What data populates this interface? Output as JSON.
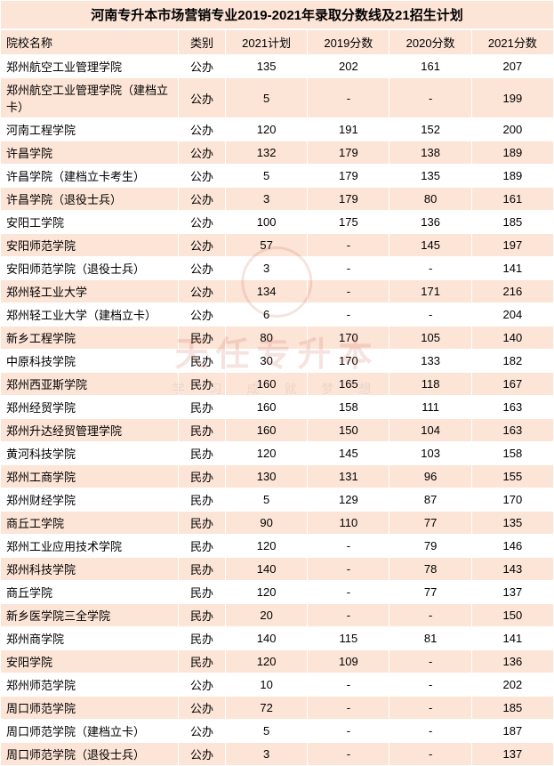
{
  "title": "河南专升本市场营销专业2019-2021年录取分数线及21招生计划",
  "columns": [
    "院校名称",
    "类别",
    "2021计划",
    "2019分数",
    "2020分数",
    "2021分数"
  ],
  "column_widths": [
    "200px",
    "60px",
    "85px",
    "85px",
    "85px",
    "85px"
  ],
  "rows": [
    [
      "郑州航空工业管理学院",
      "公办",
      "135",
      "202",
      "161",
      "207"
    ],
    [
      "郑州航空工业管理学院（建档立卡）",
      "公办",
      "5",
      "-",
      "-",
      "199"
    ],
    [
      "河南工程学院",
      "公办",
      "120",
      "191",
      "152",
      "200"
    ],
    [
      "许昌学院",
      "公办",
      "132",
      "179",
      "138",
      "189"
    ],
    [
      "许昌学院（建档立卡考生）",
      "公办",
      "5",
      "179",
      "135",
      "189"
    ],
    [
      "许昌学院（退役士兵）",
      "公办",
      "3",
      "179",
      "80",
      "161"
    ],
    [
      "安阳工学院",
      "公办",
      "100",
      "175",
      "136",
      "185"
    ],
    [
      "安阳师范学院",
      "公办",
      "57",
      "-",
      "145",
      "197"
    ],
    [
      "安阳师范学院（退役士兵）",
      "公办",
      "3",
      "-",
      "-",
      "141"
    ],
    [
      "郑州轻工业大学",
      "公办",
      "134",
      "-",
      "171",
      "216"
    ],
    [
      "郑州轻工业大学（建档立卡）",
      "公办",
      "6",
      "-",
      "-",
      "204"
    ],
    [
      "新乡工程学院",
      "民办",
      "80",
      "170",
      "105",
      "140"
    ],
    [
      "中原科技学院",
      "民办",
      "30",
      "170",
      "133",
      "182"
    ],
    [
      "郑州西亚斯学院",
      "民办",
      "160",
      "165",
      "118",
      "167"
    ],
    [
      "郑州经贸学院",
      "民办",
      "160",
      "158",
      "111",
      "163"
    ],
    [
      "郑州升达经贸管理学院",
      "民办",
      "160",
      "150",
      "104",
      "163"
    ],
    [
      "黄河科技学院",
      "民办",
      "120",
      "145",
      "103",
      "158"
    ],
    [
      "郑州工商学院",
      "民办",
      "130",
      "131",
      "96",
      "155"
    ],
    [
      "郑州财经学院",
      "民办",
      "5",
      "129",
      "87",
      "170"
    ],
    [
      "商丘工学院",
      "民办",
      "90",
      "110",
      "77",
      "135"
    ],
    [
      "郑州工业应用技术学院",
      "民办",
      "120",
      "-",
      "79",
      "146"
    ],
    [
      "郑州科技学院",
      "民办",
      "140",
      "-",
      "78",
      "143"
    ],
    [
      "商丘学院",
      "民办",
      "120",
      "-",
      "77",
      "137"
    ],
    [
      "新乡医学院三全学院",
      "民办",
      "20",
      "-",
      "-",
      "150"
    ],
    [
      "郑州商学院",
      "民办",
      "140",
      "115",
      "81",
      "141"
    ],
    [
      "安阳学院",
      "民办",
      "120",
      "109",
      "-",
      "136"
    ],
    [
      "郑州师范学院",
      "公办",
      "10",
      "-",
      "-",
      "202"
    ],
    [
      "周口师范学院",
      "公办",
      "72",
      "-",
      "-",
      "185"
    ],
    [
      "周口师范学院（建档立卡）",
      "公办",
      "5",
      "-",
      "-",
      "187"
    ],
    [
      "周口师范学院（退役士兵）",
      "公办",
      "3",
      "-",
      "-",
      "137"
    ]
  ],
  "colors": {
    "header_bg": "#fce4d6",
    "row_alt_bg": "#fce4d6",
    "row_bg": "#ffffff",
    "border": "#ffffff",
    "text": "#000000",
    "watermark": "#c94a3a"
  },
  "watermark": {
    "main": "天任专升本",
    "sub": "学 习 成 就 梦 想"
  }
}
